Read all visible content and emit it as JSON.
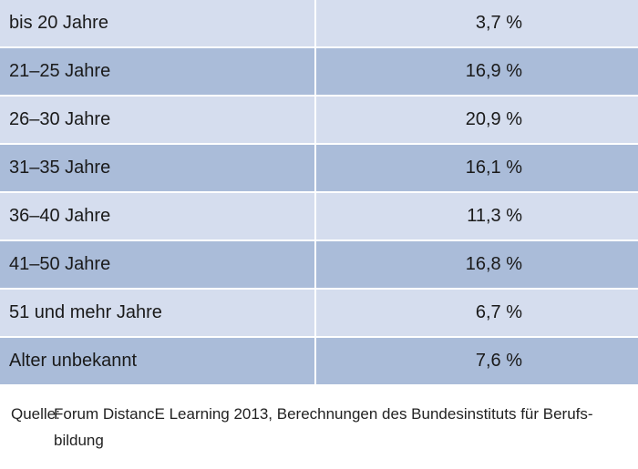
{
  "chart_data": {
    "type": "table",
    "rows": [
      {
        "label": "bis 20 Jahre",
        "value": "3,7 %"
      },
      {
        "label": "21–25 Jahre",
        "value": "16,9 %"
      },
      {
        "label": "26–30 Jahre",
        "value": "20,9 %"
      },
      {
        "label": "31–35 Jahre",
        "value": "16,1 %"
      },
      {
        "label": "36–40 Jahre",
        "value": "11,3 %"
      },
      {
        "label": "41–50 Jahre",
        "value": "16,8 %"
      },
      {
        "label": "51 und mehr Jahre",
        "value": "6,7 %"
      },
      {
        "label": "Alter unbekannt",
        "value": "7,6 %"
      }
    ]
  },
  "source": {
    "prefix": "Quelle:",
    "text": "Forum DistancE Learning 2013, Berechnungen des Bundesinstituts für Berufs­bildung"
  },
  "colors": {
    "row_light": "#d5ddee",
    "row_dark": "#aabcd9"
  }
}
